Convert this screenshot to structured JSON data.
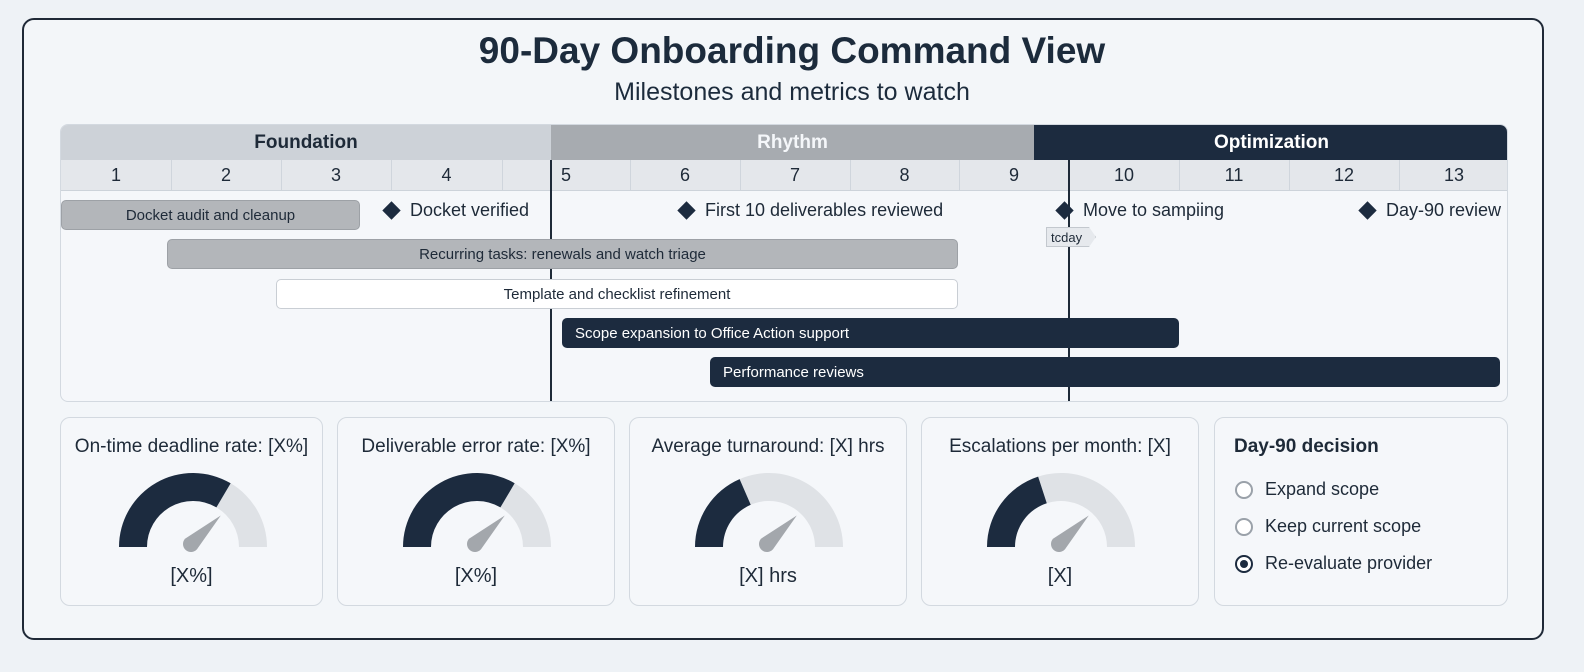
{
  "title": "90-Day Onboarding Command View",
  "subtitle": "Milestones and metrics to watch",
  "phases": [
    {
      "label": "Foundation",
      "start_week": 1,
      "end_week": 4
    },
    {
      "label": "Rhythm",
      "start_week": 5,
      "end_week": 9
    },
    {
      "label": "Optimization",
      "start_week": 10,
      "end_week": 13
    }
  ],
  "weeks": [
    "1",
    "2",
    "3",
    "4",
    "5",
    "6",
    "7",
    "8",
    "9",
    "10",
    "11",
    "12",
    "13"
  ],
  "tasks": [
    {
      "label": "Docket audit and cleanup",
      "style": "gray"
    },
    {
      "label": "Recurring tasks: renewals and watch triage",
      "style": "gray"
    },
    {
      "label": "Template and checklist refinement",
      "style": "white"
    },
    {
      "label": "Scope expansion to Office Action support",
      "style": "dark"
    },
    {
      "label": "Performance reviews",
      "style": "dark"
    }
  ],
  "milestones": [
    {
      "label": "Docket verified"
    },
    {
      "label": "First 10 deliverables reviewed"
    },
    {
      "label": "Move to sampiing"
    },
    {
      "label": "Day-90 review"
    }
  ],
  "today_label": "tcday",
  "metrics": [
    {
      "title": "On-time deadline rate: [X%]",
      "value": "[X%]",
      "fill": 0.67
    },
    {
      "title": "Deliverable error rate: [X%]",
      "value": "[X%]",
      "fill": 0.67
    },
    {
      "title": "Average turnaround: [X] hrs",
      "value": "[X] hrs",
      "fill": 0.37
    },
    {
      "title": "Escalations per month: [X]",
      "value": "[X]",
      "fill": 0.4
    }
  ],
  "decision": {
    "title": "Day-90 decision",
    "options": [
      {
        "label": "Expand scope",
        "selected": false
      },
      {
        "label": "Keep current scope",
        "selected": false
      },
      {
        "label": "Re-evaluate provider",
        "selected": true
      }
    ]
  },
  "colors": {
    "dark": "#1c2b3f",
    "gauge_track": "#dfe2e6",
    "needle": "#a3a7ac"
  }
}
